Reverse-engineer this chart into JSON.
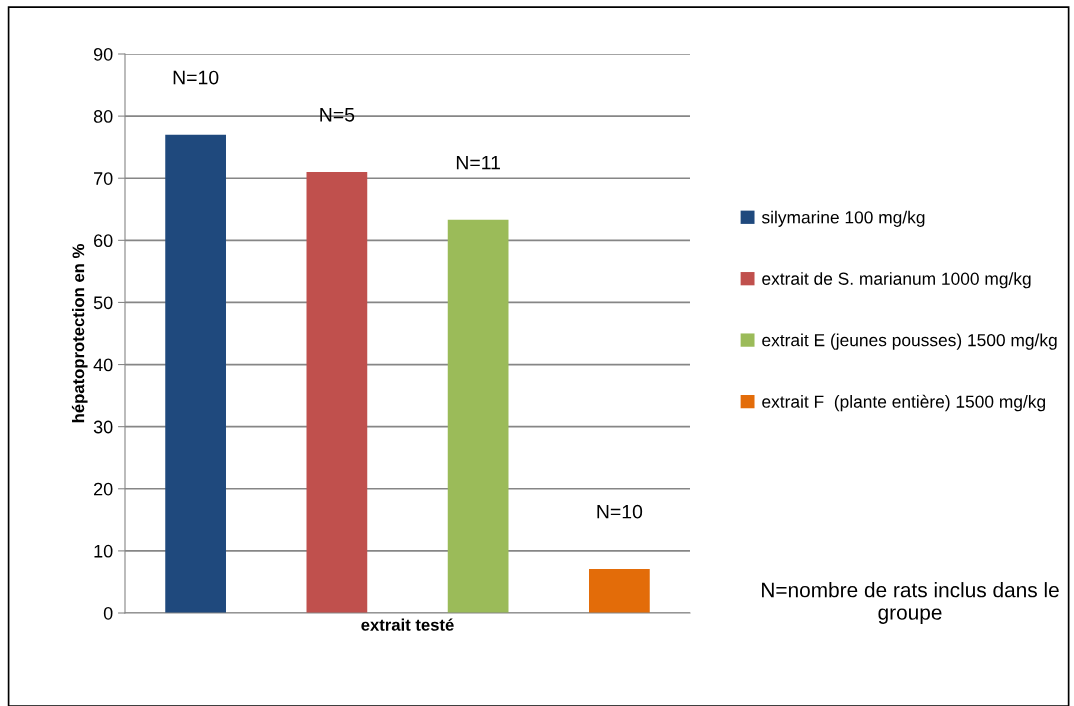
{
  "chart_data": {
    "type": "bar",
    "xlabel": "extrait testé",
    "ylabel": "hépatoprotection en %",
    "categories": [
      null
    ],
    "series": [
      {
        "name": "silymarine 100 mg/kg",
        "color": "#1f497d",
        "values": [
          77
        ]
      },
      {
        "name": "extrait de S. marianum 1000 mg/kg",
        "color": "#c0504d",
        "values": [
          71
        ]
      },
      {
        "name": "extrait E (jeunes pousses) 1500 mg/kg",
        "color": "#9bbb59",
        "values": [
          63.3
        ]
      },
      {
        "name": "extrait F  (plante entière) 1500 mg/kg",
        "color": "#e36c09",
        "values": [
          7.1
        ]
      }
    ],
    "annotations": [
      "N=10",
      "N=5",
      "N=11",
      "N=10",
      "N=nombre de rats inclus dans le groupe"
    ],
    "ylim": [
      0,
      90
    ],
    "yticks": [
      0,
      10,
      20,
      30,
      40,
      50,
      60,
      70,
      80,
      90
    ],
    "grid": "y",
    "legend": "right"
  }
}
